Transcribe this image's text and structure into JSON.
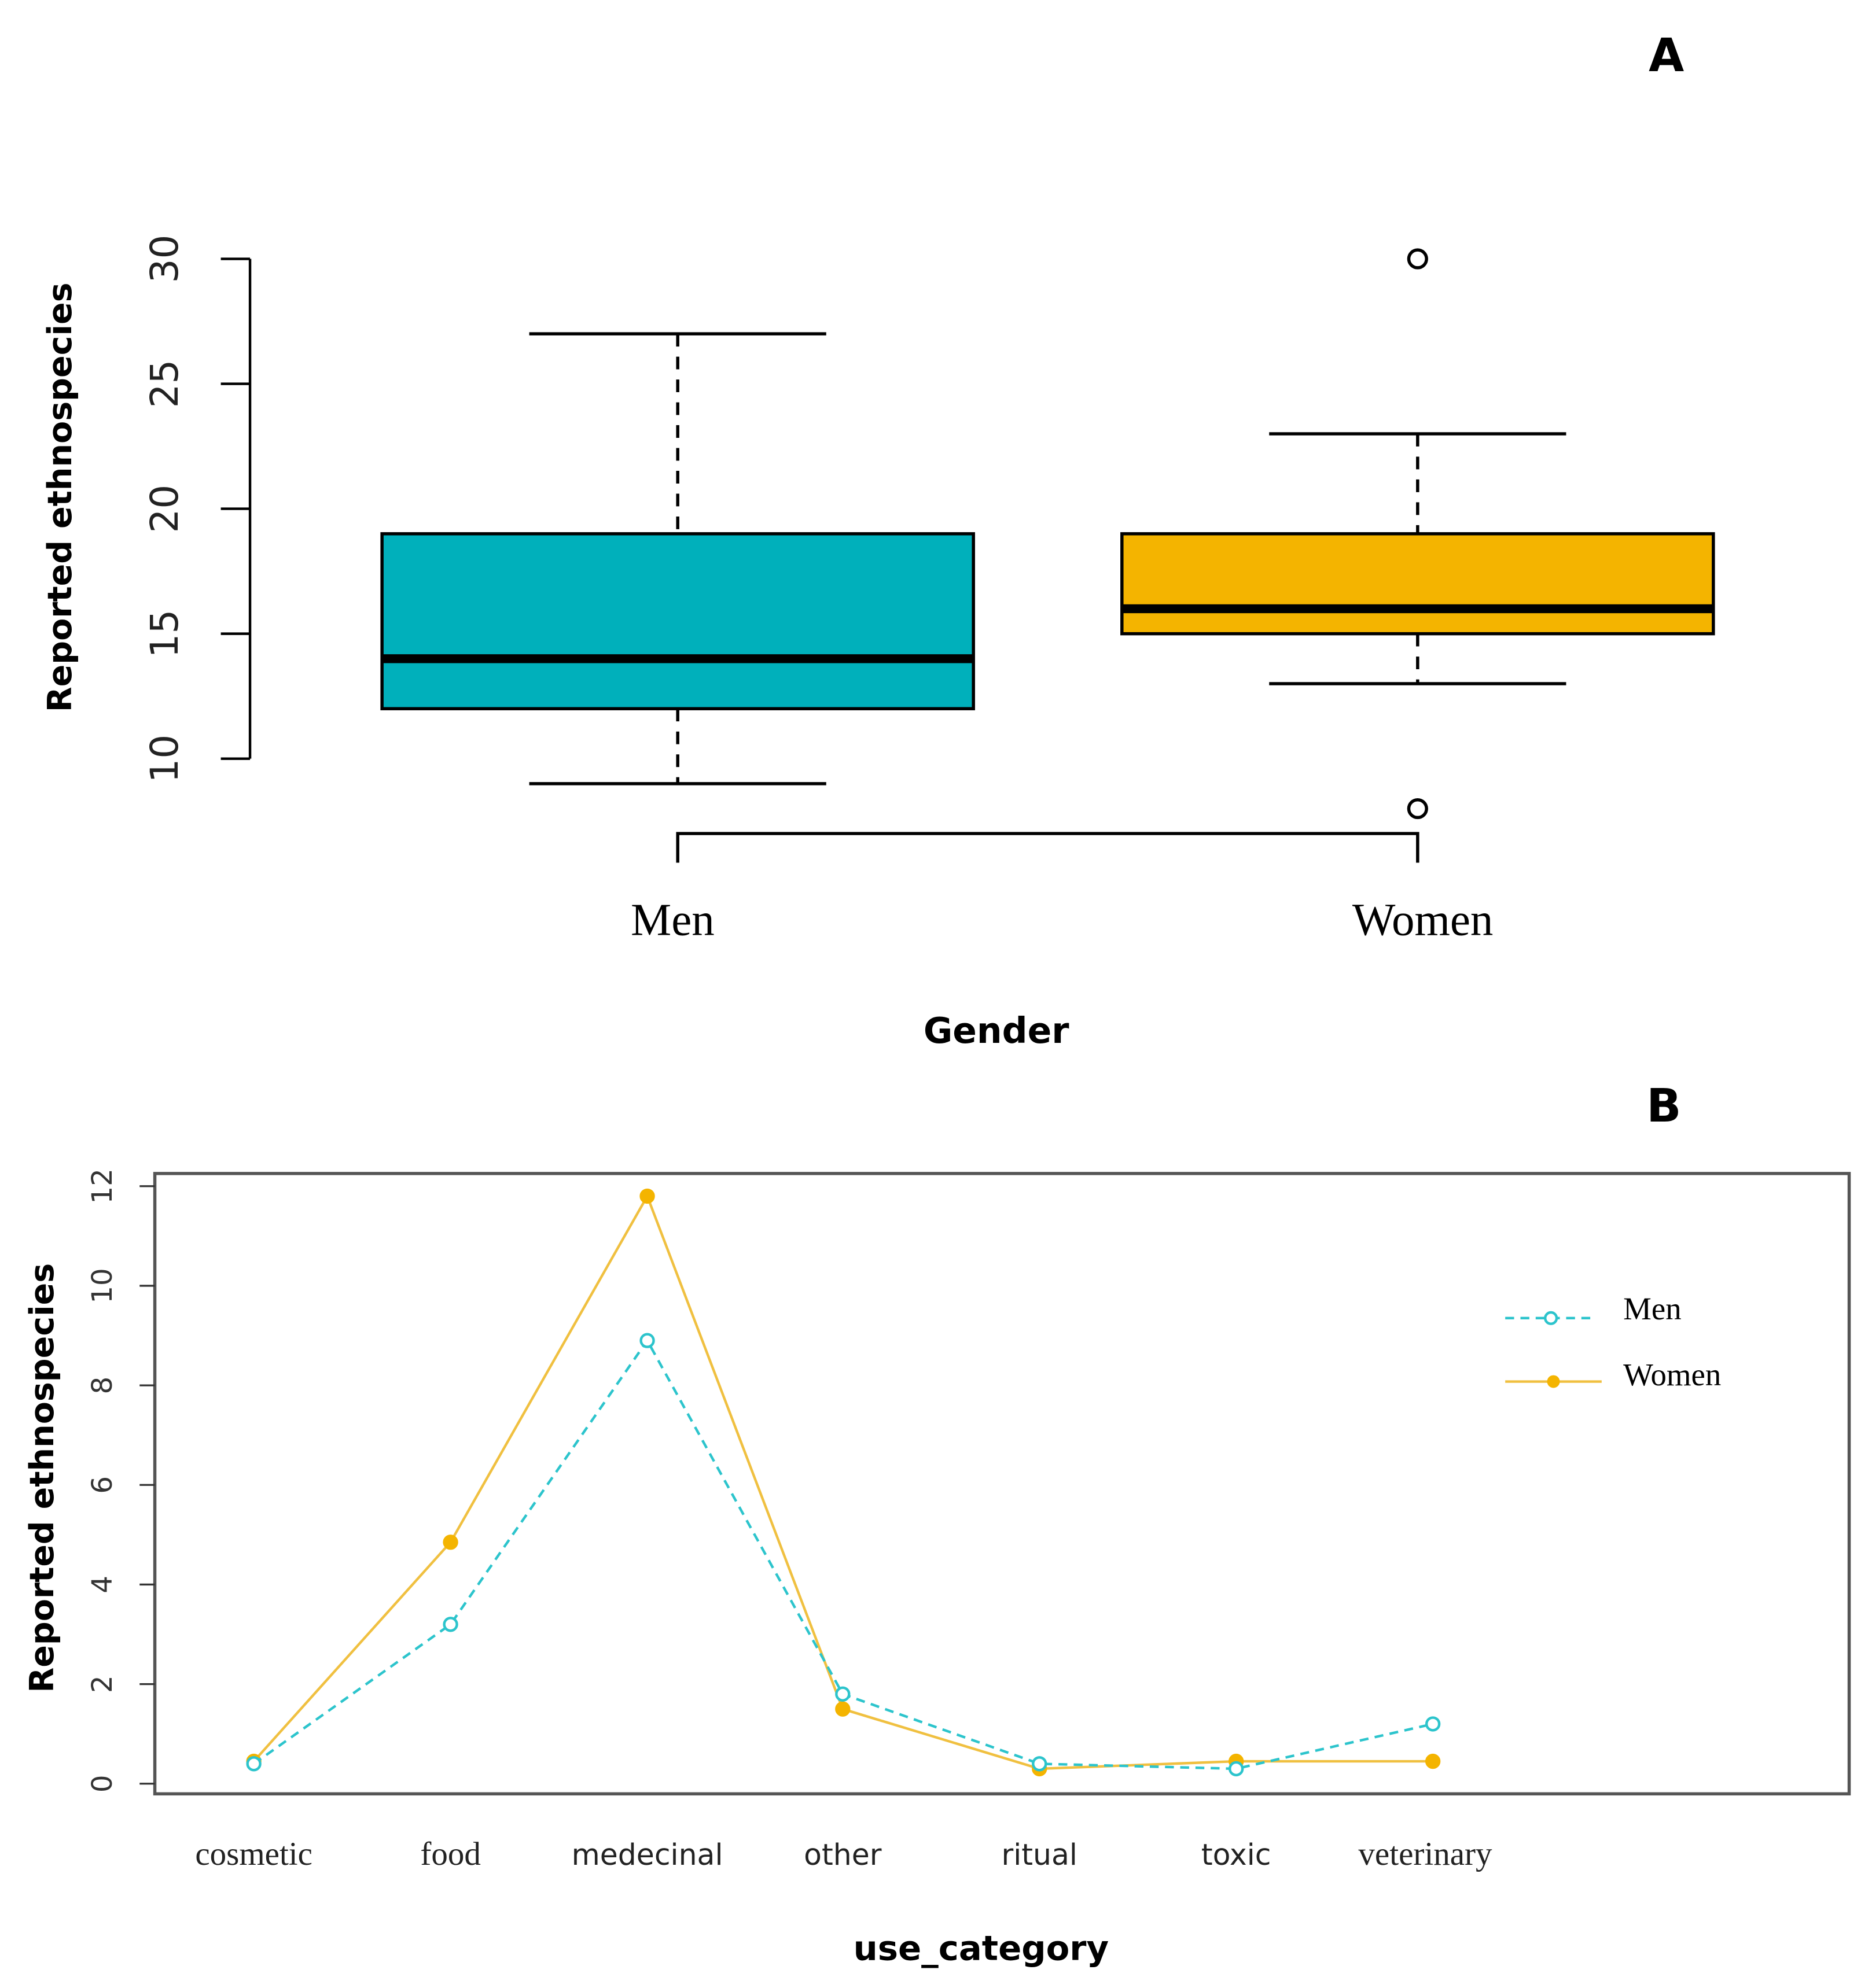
{
  "colors": {
    "men": "#00b0bb",
    "women": "#f4b400",
    "men_line": "#2cc4cc",
    "women_line": "#f0c040",
    "axis": "#000000"
  },
  "chart_data": [
    {
      "panel": "A",
      "type": "boxplot",
      "xlabel": "Gender",
      "ylabel": "Reported ethnospecies",
      "ylim": [
        10,
        30
      ],
      "yticks": [
        "10",
        "15",
        "20",
        "25",
        "30"
      ],
      "categories": [
        "Men",
        "Women"
      ],
      "boxes": [
        {
          "name": "Men",
          "min": 9,
          "q1": 12,
          "median": 14,
          "q3": 19,
          "max": 27,
          "outliers": []
        },
        {
          "name": "Women",
          "min": 13,
          "q1": 15,
          "median": 16,
          "q3": 19,
          "max": 23,
          "outliers": [
            30,
            8
          ]
        }
      ]
    },
    {
      "panel": "B",
      "type": "line",
      "xlabel": "use_category",
      "ylabel": "Reported ethnospecies",
      "ylim": [
        0,
        12
      ],
      "yticks": [
        "0",
        "2",
        "4",
        "6",
        "8",
        "10",
        "12"
      ],
      "categories": [
        "cosmetic",
        "food",
        "medecinal",
        "other",
        "ritual",
        "toxic",
        "veterinary"
      ],
      "legend_position": "top-right",
      "series": [
        {
          "name": "Men",
          "style": "dashed, open circles",
          "values": [
            0.4,
            3.2,
            8.9,
            1.8,
            0.4,
            0.3,
            1.2
          ]
        },
        {
          "name": "Women",
          "style": "solid, filled circles",
          "values": [
            0.45,
            4.85,
            11.8,
            1.5,
            0.3,
            0.45,
            0.45
          ]
        }
      ]
    }
  ]
}
